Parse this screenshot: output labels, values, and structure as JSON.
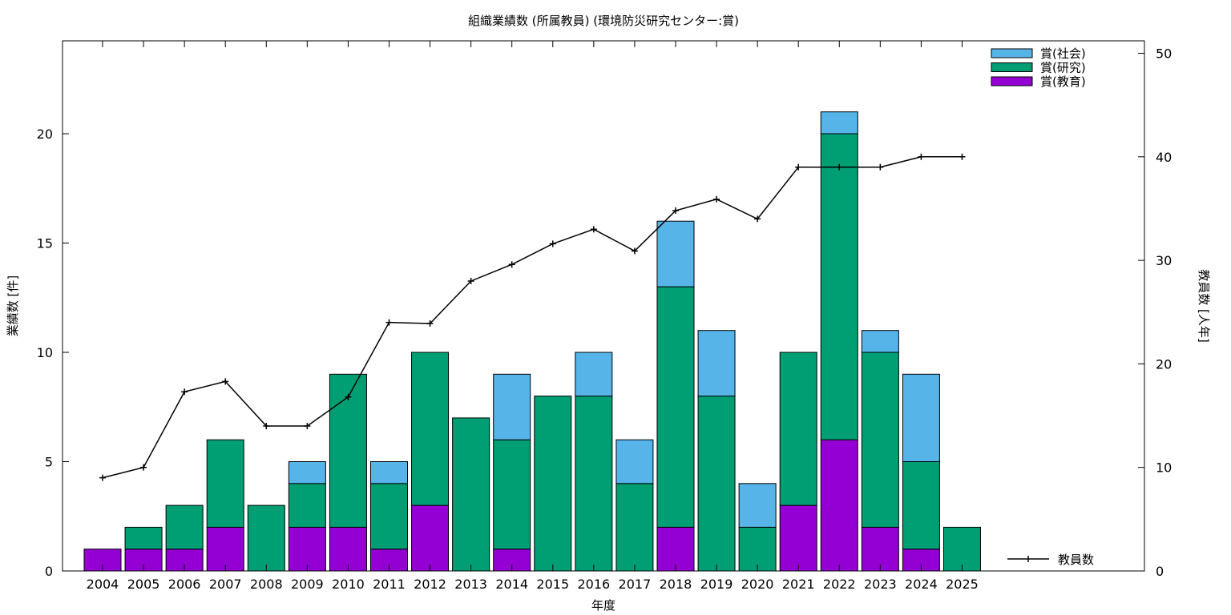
{
  "chart_data": {
    "type": "bar",
    "stacked": true,
    "title": "組織業績数 (所属教員) (環境防災研究センター:賞)",
    "xlabel": "年度",
    "ylabel": "業績数 [件]",
    "y2label": "教員数 [人年]",
    "ylim": [
      0,
      24
    ],
    "y2lim": [
      0,
      51
    ],
    "yticks": [
      0,
      5,
      10,
      15,
      20
    ],
    "y2ticks": [
      0,
      10,
      20,
      30,
      40,
      50
    ],
    "grid": false,
    "legend_position": "top-right",
    "categories": [
      "2004",
      "2005",
      "2006",
      "2007",
      "2008",
      "2009",
      "2010",
      "2011",
      "2012",
      "2013",
      "2014",
      "2015",
      "2016",
      "2017",
      "2018",
      "2019",
      "2020",
      "2021",
      "2022",
      "2023",
      "2024",
      "2025"
    ],
    "series": [
      {
        "name": "賞(教育)",
        "color": "#9400d3",
        "values": [
          1,
          1,
          1,
          2,
          0,
          2,
          2,
          1,
          3,
          0,
          1,
          0,
          0,
          0,
          2,
          0,
          0,
          3,
          6,
          2,
          1,
          0
        ]
      },
      {
        "name": "賞(研究)",
        "color": "#009e73",
        "values": [
          0,
          1,
          2,
          4,
          3,
          2,
          7,
          3,
          7,
          7,
          5,
          8,
          8,
          4,
          11,
          8,
          2,
          7,
          14,
          8,
          4,
          2
        ]
      },
      {
        "name": "賞(社会)",
        "color": "#56b4e9",
        "values": [
          0,
          0,
          0,
          0,
          0,
          1,
          0,
          1,
          0,
          0,
          3,
          0,
          2,
          2,
          3,
          3,
          2,
          0,
          1,
          1,
          4,
          0
        ]
      }
    ],
    "line_series": {
      "name": "教員数",
      "axis": "y2",
      "color": "#000000",
      "values": [
        9,
        10,
        17.3,
        18.3,
        14,
        14,
        16.8,
        24,
        23.9,
        28,
        29.6,
        31.6,
        33,
        30.9,
        34.8,
        35.9,
        34,
        39,
        39,
        39,
        40,
        40
      ]
    }
  }
}
